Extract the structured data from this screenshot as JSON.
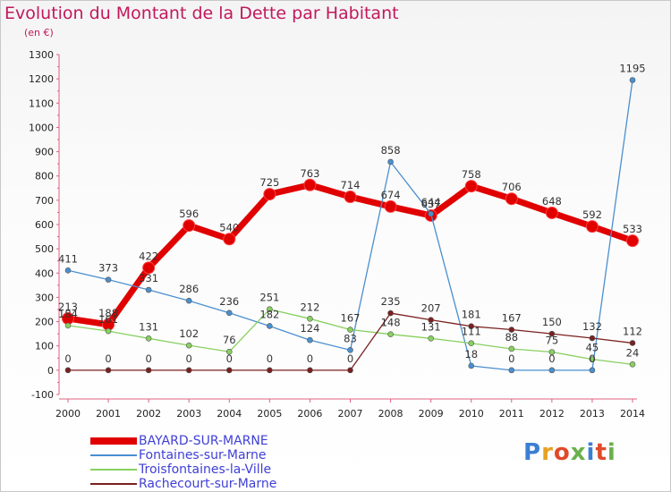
{
  "title": "Evolution du Montant de la Dette par Habitant",
  "subtitle": "(en €)",
  "logo": {
    "text": "Proxiti",
    "colors": [
      "#3b7fd4",
      "#e8a020",
      "#e04a2a",
      "#6ab04c",
      "#3b7fd4",
      "#e04a2a",
      "#6ab04c"
    ]
  },
  "chart_data": {
    "type": "line",
    "x": [
      "2000",
      "2001",
      "2002",
      "2003",
      "2004",
      "2005",
      "2006",
      "2007",
      "2008",
      "2009",
      "2010",
      "2011",
      "2012",
      "2013",
      "2014"
    ],
    "ylim": [
      -100,
      1300
    ],
    "yticks": [
      -100,
      0,
      100,
      200,
      300,
      400,
      500,
      600,
      700,
      800,
      900,
      1000,
      1100,
      1200,
      1300
    ],
    "grid": false,
    "legend_position": "bottom-left",
    "series": [
      {
        "name": "BAYARD-SUR-MARNE",
        "color": "#e00000",
        "values": [
          213,
          188,
          422,
          596,
          540,
          725,
          763,
          714,
          674,
          637,
          758,
          706,
          648,
          592,
          533
        ]
      },
      {
        "name": "Fontaines-sur-Marne",
        "color": "#4a8fd0",
        "values": [
          411,
          373,
          331,
          286,
          236,
          182,
          124,
          83,
          858,
          644,
          18,
          0,
          0,
          0,
          1195
        ]
      },
      {
        "name": "Troisfontaines-la-Ville",
        "color": "#88d060",
        "values": [
          184,
          161,
          131,
          102,
          76,
          251,
          212,
          167,
          148,
          131,
          111,
          88,
          75,
          45,
          24
        ]
      },
      {
        "name": "Rachecourt-sur-Marne",
        "color": "#7a2020",
        "values": [
          0,
          0,
          0,
          0,
          0,
          0,
          0,
          0,
          235,
          207,
          181,
          167,
          150,
          132,
          112
        ]
      }
    ],
    "labels": {
      "BAYARD-SUR-MARNE": [
        "213",
        "188",
        "422",
        "596",
        "540",
        "725",
        "763",
        "714",
        "674",
        "637",
        "758",
        "706",
        "648",
        "592",
        "533"
      ],
      "Fontaines-sur-Marne": [
        "411",
        "373",
        "331",
        "286",
        "236",
        "182",
        "124",
        "83",
        "858",
        "644",
        "18",
        "0",
        "0",
        "0",
        "1195"
      ],
      "Troisfontaines-la-Ville": [
        "184",
        "161",
        "131",
        "102",
        "76",
        "251",
        "212",
        "167",
        "148",
        "131",
        "111",
        "88",
        "75",
        "45",
        "24"
      ],
      "Rachecourt-sur-Marne": [
        "0",
        "0",
        "0",
        "0",
        "0",
        "0",
        "0",
        "0",
        "235",
        "207",
        "181",
        "167",
        "150",
        "132",
        "112"
      ]
    }
  }
}
